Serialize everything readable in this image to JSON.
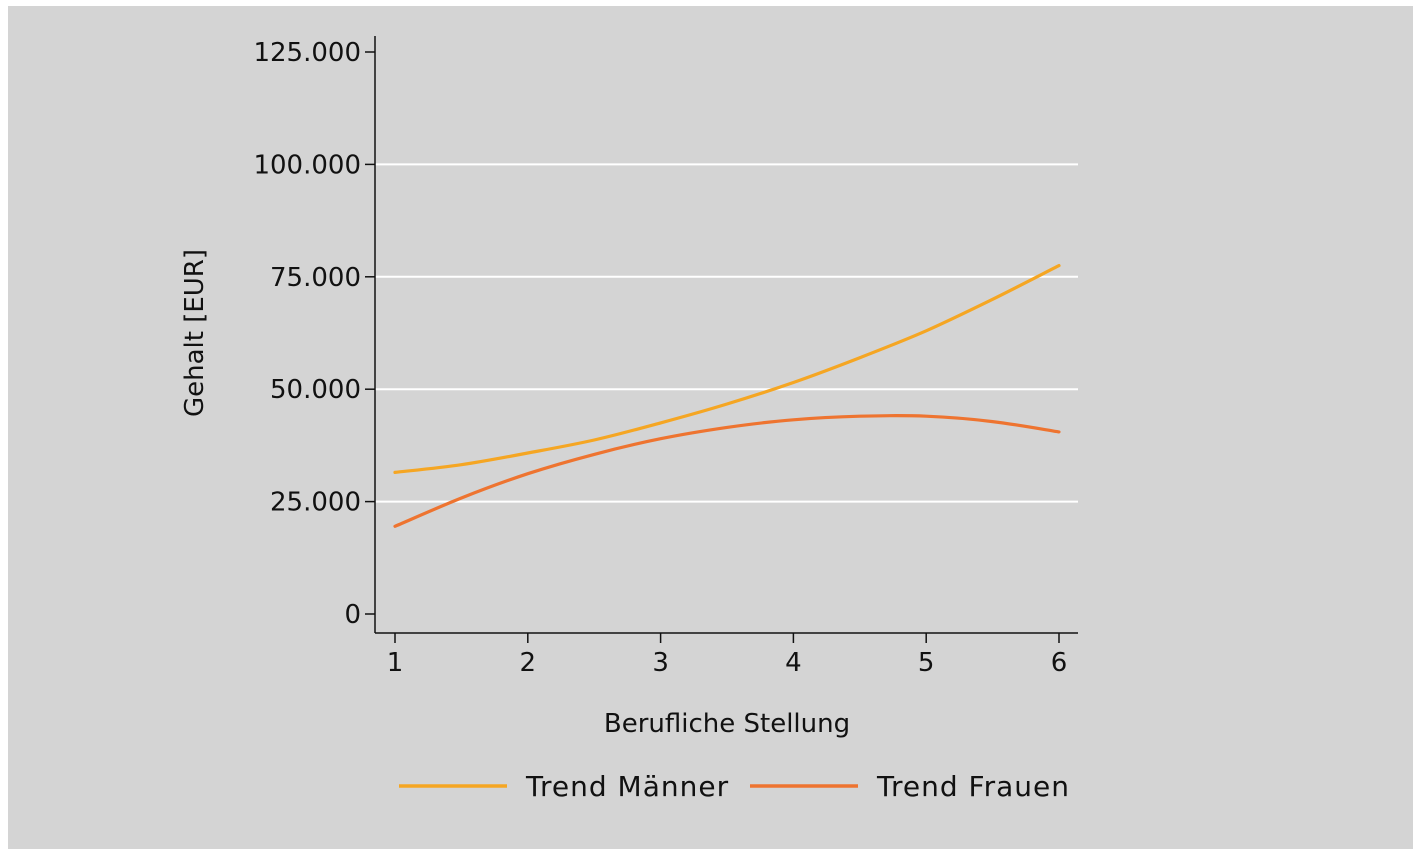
{
  "chart_data": {
    "type": "line",
    "title": "",
    "xlabel": "Berufliche Stellung",
    "ylabel": "Gehalt [EUR]",
    "xlim": [
      1,
      6
    ],
    "ylim": [
      0,
      125000
    ],
    "x_ticks": [
      1,
      2,
      3,
      4,
      5,
      6
    ],
    "x_tick_labels": [
      "1",
      "2",
      "3",
      "4",
      "5",
      "6"
    ],
    "y_ticks": [
      0,
      25000,
      50000,
      75000,
      100000,
      125000
    ],
    "y_tick_labels": [
      "0",
      "25.000",
      "50.000",
      "75.000",
      "100.000",
      "125.000"
    ],
    "grid": "horizontal",
    "legend_position": "bottom",
    "series": [
      {
        "name": "Trend Männer",
        "color": "#f5a623",
        "x": [
          1,
          1.5,
          2,
          2.5,
          3,
          3.5,
          4,
          4.5,
          5,
          5.5,
          6
        ],
        "y": [
          31500,
          33200,
          35800,
          38700,
          42500,
          46700,
          51500,
          57000,
          63000,
          70000,
          77500
        ]
      },
      {
        "name": "Trend Frauen",
        "color": "#ee7430",
        "x": [
          1,
          1.5,
          2,
          2.5,
          3,
          3.5,
          4,
          4.5,
          5,
          5.5,
          6
        ],
        "y": [
          19500,
          25800,
          31200,
          35500,
          39000,
          41500,
          43200,
          44000,
          44000,
          42800,
          40500
        ]
      }
    ]
  }
}
